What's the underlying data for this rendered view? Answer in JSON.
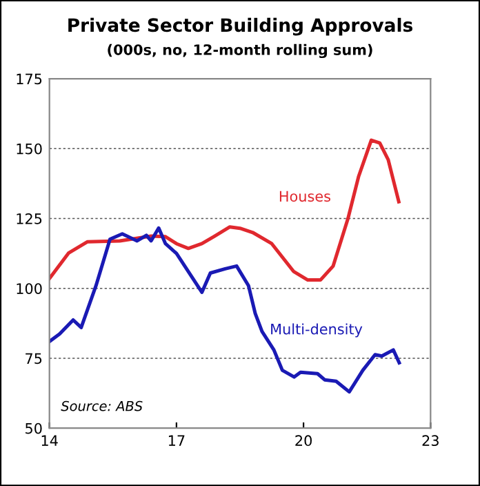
{
  "chart_data": {
    "type": "line",
    "title": "Private Sector Building Approvals",
    "subtitle": "(000s, no, 12-month rolling sum)",
    "annotations": [
      "Source: ABS"
    ],
    "xlim": [
      14,
      23
    ],
    "xticks": [
      14,
      17,
      20,
      23
    ],
    "ylim": [
      50,
      175
    ],
    "yticks": [
      50,
      75,
      100,
      125,
      150,
      175
    ],
    "grid": "y",
    "legend": false,
    "series": [
      {
        "name": "Houses",
        "color": "#e0282e",
        "x": [
          14.0,
          14.45,
          14.9,
          15.66,
          16.4,
          16.74,
          17.0,
          17.28,
          17.6,
          17.9,
          18.26,
          18.5,
          18.8,
          19.25,
          19.77,
          20.1,
          20.4,
          20.7,
          21.05,
          21.3,
          21.6,
          21.8,
          22.0,
          22.25
        ],
        "values": [
          103.5,
          112.6,
          116.7,
          117,
          118.7,
          118.5,
          116,
          114.3,
          116,
          118.7,
          122,
          121.5,
          120,
          116,
          106,
          103,
          103,
          108,
          125,
          140,
          153,
          152,
          146,
          131
        ]
      },
      {
        "name": "Multi-density",
        "color": "#1a1ab4",
        "x": [
          14.0,
          14.24,
          14.56,
          14.75,
          15.1,
          15.43,
          15.72,
          16.07,
          16.29,
          16.4,
          16.58,
          16.74,
          17.0,
          17.28,
          17.6,
          17.8,
          18.15,
          18.42,
          18.7,
          18.86,
          19.02,
          19.3,
          19.5,
          19.78,
          19.93,
          20.33,
          20.5,
          20.77,
          21.08,
          21.4,
          21.69,
          21.85,
          22.12,
          22.26
        ],
        "values": [
          81,
          83.7,
          88.7,
          86,
          101,
          117.6,
          119.5,
          117,
          119,
          117,
          121.6,
          116,
          112.5,
          106,
          98.6,
          105.5,
          107,
          108,
          101,
          91,
          84.6,
          78,
          70.7,
          68.3,
          70,
          69.5,
          67.3,
          66.8,
          63,
          70.7,
          76.3,
          75.8,
          78,
          73.4
        ]
      }
    ]
  }
}
